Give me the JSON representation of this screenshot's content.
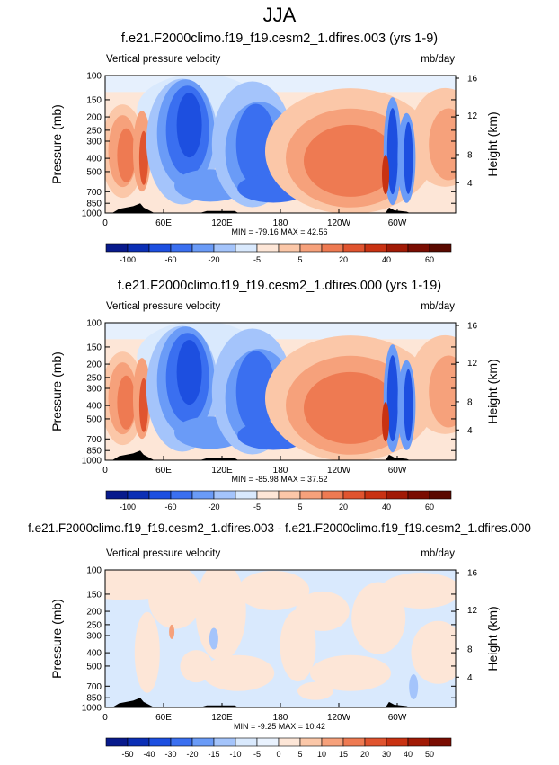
{
  "title": "JJA",
  "colors": {
    "neg": [
      "#081a8c",
      "#0b2fb5",
      "#1d4fe0",
      "#3a6ff0",
      "#6a9bf7",
      "#a4c4fb",
      "#d9e9fd"
    ],
    "pos": [
      "#fde6d7",
      "#fbc7a8",
      "#f6a17b",
      "#ee7a52",
      "#e0542f",
      "#c93212",
      "#a11a05",
      "#7a0d02"
    ]
  },
  "chart_data": [
    {
      "type": "heatmap",
      "title": "f.e21.F2000climo.f19_f19.cesm2_1.dfires.003 (yrs 1-9)",
      "variable": "Vertical pressure velocity",
      "units": "mb/day",
      "ylabel_left": "Pressure (mb)",
      "ylabel_right": "Height (km)",
      "pressure_ticks": [
        "100",
        "150",
        "200",
        "250",
        "300",
        "400",
        "500",
        "700",
        "850",
        "1000"
      ],
      "height_ticks": [
        "16",
        "12",
        "8",
        "4"
      ],
      "lon_ticks": [
        "0",
        "60E",
        "120E",
        "180",
        "120W",
        "60W"
      ],
      "min": -79.16,
      "max": 42.56,
      "minmax_text": "MIN = -79.16   MAX =  42.56",
      "colorbar_labels": [
        "-100",
        "-60",
        "-20",
        "-5",
        "5",
        "20",
        "40",
        "60"
      ]
    },
    {
      "type": "heatmap",
      "title": "f.e21.F2000climo.f19_f19.cesm2_1.dfires.000 (yrs 1-19)",
      "variable": "Vertical pressure velocity",
      "units": "mb/day",
      "ylabel_left": "Pressure (mb)",
      "ylabel_right": "Height (km)",
      "pressure_ticks": [
        "100",
        "150",
        "200",
        "250",
        "300",
        "400",
        "500",
        "700",
        "850",
        "1000"
      ],
      "height_ticks": [
        "16",
        "12",
        "8",
        "4"
      ],
      "lon_ticks": [
        "0",
        "60E",
        "120E",
        "180",
        "120W",
        "60W"
      ],
      "min": -85.98,
      "max": 37.52,
      "minmax_text": "MIN = -85.98   MAX =  37.52",
      "colorbar_labels": [
        "-100",
        "-60",
        "-20",
        "-5",
        "5",
        "20",
        "40",
        "60"
      ]
    },
    {
      "type": "heatmap",
      "title": "f.e21.F2000climo.f19_f19.cesm2_1.dfires.003 - f.e21.F2000climo.f19_f19.cesm2_1.dfires.000",
      "variable": "Vertical pressure velocity",
      "units": "mb/day",
      "ylabel_left": "Pressure (mb)",
      "ylabel_right": "Height (km)",
      "pressure_ticks": [
        "100",
        "150",
        "200",
        "250",
        "300",
        "400",
        "500",
        "700",
        "850",
        "1000"
      ],
      "height_ticks": [
        "16",
        "12",
        "8",
        "4"
      ],
      "lon_ticks": [
        "0",
        "60E",
        "120E",
        "180",
        "120W",
        "60W"
      ],
      "min": -9.25,
      "max": 10.42,
      "minmax_text": "MIN = -9.25   MAX =  10.42",
      "colorbar_labels": [
        "-50",
        "-40",
        "-30",
        "-20",
        "-15",
        "-10",
        "-5",
        "0",
        "5",
        "10",
        "15",
        "20",
        "30",
        "40",
        "50"
      ]
    }
  ]
}
